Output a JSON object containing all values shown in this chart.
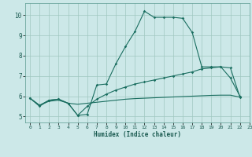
{
  "title": "",
  "xlabel": "Humidex (Indice chaleur)",
  "xlim": [
    -0.5,
    23
  ],
  "ylim": [
    4.7,
    10.6
  ],
  "yticks": [
    5,
    6,
    7,
    8,
    9,
    10
  ],
  "xticks": [
    0,
    1,
    2,
    3,
    4,
    5,
    6,
    7,
    8,
    9,
    10,
    11,
    12,
    13,
    14,
    15,
    16,
    17,
    18,
    19,
    20,
    21,
    22,
    23
  ],
  "bg_color": "#cce8e8",
  "line_color": "#1a6e60",
  "grid_color": "#a0c8c0",
  "line1_x": [
    0,
    1,
    2,
    3,
    4,
    5,
    6,
    7,
    8,
    9,
    10,
    11,
    12,
    13,
    14,
    15,
    16,
    17,
    18,
    19,
    20,
    21,
    22
  ],
  "line1_y": [
    5.9,
    5.5,
    5.8,
    5.85,
    5.65,
    5.05,
    5.1,
    6.55,
    6.6,
    7.6,
    8.45,
    9.2,
    10.2,
    9.9,
    9.9,
    9.9,
    9.85,
    9.15,
    7.45,
    7.45,
    7.45,
    6.9,
    6.0
  ],
  "line2_x": [
    0,
    1,
    2,
    3,
    4,
    5,
    6,
    7,
    8,
    9,
    10,
    11,
    12,
    13,
    14,
    15,
    16,
    17,
    18,
    19,
    20,
    21,
    22
  ],
  "line2_y": [
    5.9,
    5.55,
    5.8,
    5.85,
    5.65,
    5.05,
    5.5,
    5.85,
    6.1,
    6.3,
    6.45,
    6.6,
    6.7,
    6.8,
    6.9,
    7.0,
    7.1,
    7.2,
    7.35,
    7.4,
    7.45,
    7.4,
    5.95
  ],
  "line3_x": [
    0,
    1,
    2,
    3,
    4,
    5,
    6,
    7,
    8,
    9,
    10,
    11,
    12,
    13,
    14,
    15,
    16,
    17,
    18,
    19,
    20,
    21,
    22
  ],
  "line3_y": [
    5.9,
    5.55,
    5.75,
    5.8,
    5.65,
    5.6,
    5.65,
    5.7,
    5.75,
    5.8,
    5.85,
    5.88,
    5.9,
    5.92,
    5.94,
    5.96,
    5.98,
    6.0,
    6.02,
    6.04,
    6.05,
    6.05,
    5.95
  ]
}
